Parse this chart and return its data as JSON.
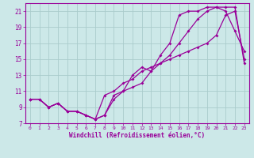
{
  "xlabel": "Windchill (Refroidissement éolien,°C)",
  "bg_color": "#cce8e8",
  "line_color": "#990099",
  "grid_color": "#aacccc",
  "xlim": [
    -0.5,
    23.5
  ],
  "ylim": [
    7,
    22
  ],
  "xticks": [
    0,
    1,
    2,
    3,
    4,
    5,
    6,
    7,
    8,
    9,
    10,
    11,
    12,
    13,
    14,
    15,
    16,
    17,
    18,
    19,
    20,
    21,
    22,
    23
  ],
  "yticks": [
    7,
    9,
    11,
    13,
    15,
    17,
    19,
    21
  ],
  "curve1_x": [
    0,
    1,
    2,
    3,
    4,
    5,
    6,
    7,
    8,
    9,
    10,
    11,
    12,
    13,
    14,
    15,
    16,
    17,
    18,
    19,
    20,
    21,
    22,
    23
  ],
  "curve1_y": [
    10,
    10,
    9,
    9.5,
    8.5,
    8.5,
    8,
    7.5,
    8.0,
    10.5,
    11.0,
    13.0,
    14.0,
    13.5,
    15.5,
    17.0,
    20.5,
    21.0,
    21.0,
    21.5,
    21.5,
    21.0,
    18.5,
    16.0
  ],
  "curve2_x": [
    0,
    1,
    2,
    3,
    4,
    5,
    6,
    7,
    8,
    9,
    10,
    11,
    12,
    13,
    14,
    15,
    16,
    17,
    18,
    19,
    20,
    21,
    22,
    23
  ],
  "curve2_y": [
    10,
    10,
    9,
    9.5,
    8.5,
    8.5,
    8,
    7.5,
    8.0,
    10.0,
    11.0,
    11.5,
    12.0,
    13.5,
    14.5,
    15.5,
    17.0,
    18.5,
    20.0,
    21.0,
    21.5,
    21.5,
    21.5,
    14.5
  ],
  "curve3_x": [
    0,
    1,
    2,
    3,
    4,
    5,
    6,
    7,
    8,
    9,
    10,
    11,
    12,
    13,
    14,
    15,
    16,
    17,
    18,
    19,
    20,
    21,
    22,
    23
  ],
  "curve3_y": [
    10,
    10,
    9,
    9.5,
    8.5,
    8.5,
    8,
    7.5,
    10.5,
    11.0,
    12.0,
    12.5,
    13.5,
    14.0,
    14.5,
    15.0,
    15.5,
    16.0,
    16.5,
    17.0,
    18.0,
    20.5,
    21.0,
    15.0
  ]
}
